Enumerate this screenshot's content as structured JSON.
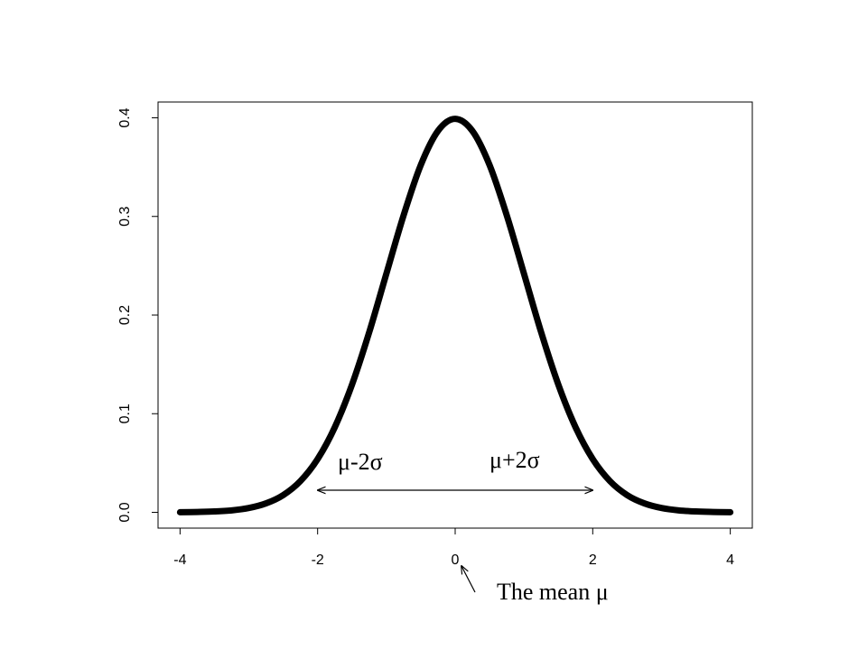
{
  "chart_data": {
    "type": "line",
    "x": [
      -4,
      -3.75,
      -3.5,
      -3.25,
      -3,
      -2.75,
      -2.5,
      -2.25,
      -2,
      -1.75,
      -1.5,
      -1.25,
      -1,
      -0.75,
      -0.5,
      -0.25,
      0,
      0.25,
      0.5,
      0.75,
      1,
      1.25,
      1.5,
      1.75,
      2,
      2.25,
      2.5,
      2.75,
      3,
      3.25,
      3.5,
      3.75,
      4
    ],
    "series": [
      {
        "color": "#000000",
        "values": [
          0.0001,
          0.0004,
          0.0009,
          0.002,
          0.0044,
          0.0091,
          0.0175,
          0.0317,
          0.054,
          0.0863,
          0.1295,
          0.1826,
          0.242,
          0.3011,
          0.3521,
          0.3867,
          0.3989,
          0.3867,
          0.3521,
          0.3011,
          0.242,
          0.1826,
          0.1295,
          0.0863,
          0.054,
          0.0317,
          0.0175,
          0.0091,
          0.0044,
          0.002,
          0.0009,
          0.0004,
          0.0001
        ]
      }
    ],
    "xlim": [
      -4.32,
      4.32
    ],
    "ylim": [
      -0.016,
      0.416
    ],
    "xticks": [
      -4,
      -2,
      0,
      2,
      4
    ],
    "yticks": [
      {
        "value": 0,
        "label": "0.0"
      },
      0.1,
      0.2,
      0.3,
      0.4
    ],
    "annotations": [
      "μ-2σ",
      "μ+2σ",
      "The mean μ"
    ]
  }
}
